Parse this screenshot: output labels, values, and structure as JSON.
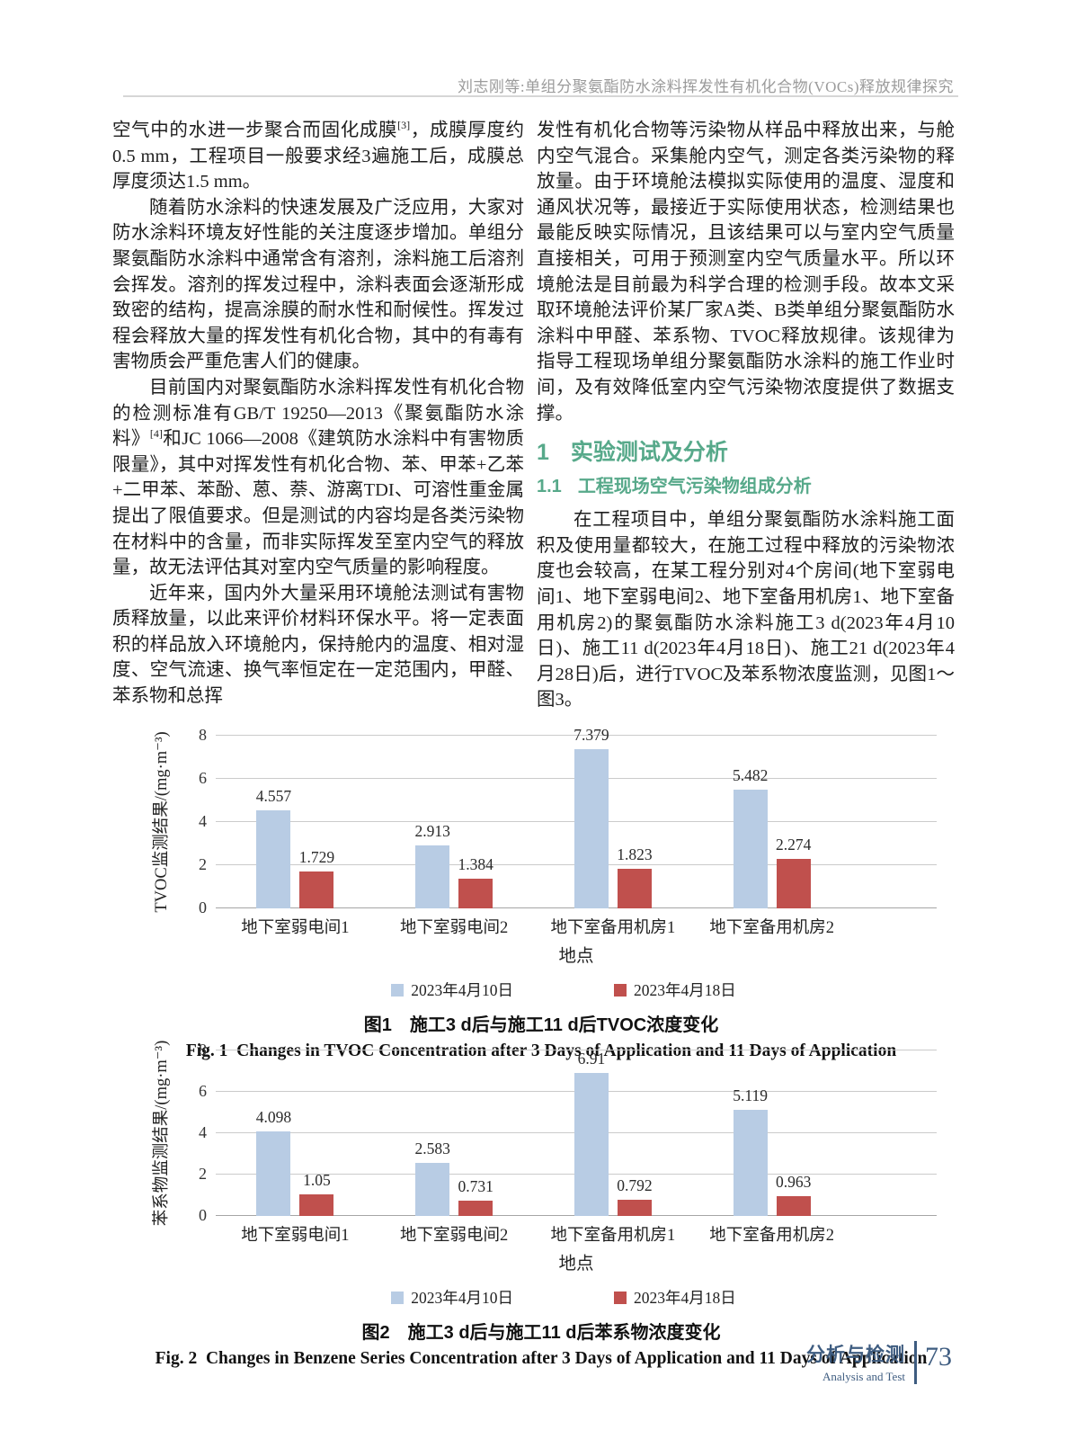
{
  "page": {
    "running_head": "刘志刚等:单组分聚氨酯防水涂料挥发性有机化合物(VOCs)释放规律探究",
    "footer": {
      "section_cn": "分析与检测",
      "section_en": "Analysis and Test",
      "page_number": "73",
      "accent_color": "#3e5c80"
    }
  },
  "colors": {
    "heading_green": "#57a98a",
    "bar_blue": "#b8cce4",
    "bar_red": "#c0504d"
  },
  "article": {
    "left_column": {
      "p1": [
        {
          "t": "空气中的水进一步聚合而固化成膜"
        },
        {
          "t": "[3]",
          "sup": true
        },
        {
          "t": "，成膜厚度约0.5 mm，工程项目一般要求经3遍施工后，成膜总厚度须达1.5 mm。"
        }
      ],
      "p2": [
        {
          "t": "随着防水涂料的快速发展及广泛应用，大家对防水涂料环境友好性能的关注度逐步增加。单组分聚氨酯防水涂料中通常含有溶剂，涂料施工后溶剂会挥发。溶剂的挥发过程中，涂料表面会逐渐形成致密的结构，提高涂膜的耐水性和耐候性。挥发过程会释放大量的挥发性有机化合物，其中的有毒有害物质会严重危害人们的健康。"
        }
      ],
      "p3": [
        {
          "t": "目前国内对聚氨酯防水涂料挥发性有机化合物的检测标准有GB/T 19250—2013《聚氨酯防水涂料》"
        },
        {
          "t": "[4]",
          "sup": true
        },
        {
          "t": "和JC 1066—2008《建筑防水涂料中有害物质限量》，其中对挥发性有机化合物、苯、甲苯+乙苯+二甲苯、苯酚、蒽、萘、游离TDI、可溶性重金属提出了限值要求。但是测试的内容均是各类污染物在材料中的含量，而非实际挥发至室内空气的释放量，故无法评估其对室内空气质量的影响程度。"
        }
      ],
      "p4": [
        {
          "t": "近年来，国内外大量采用环境舱法测试有害物质释放量，以此来评价材料环保水平。将一定表面积的样品放入环境舱内，保持舱内的温度、相对湿度、空气流速、换气率恒定在一定范围内，甲醛、苯系物和总挥"
        }
      ]
    },
    "right_column": {
      "p1": [
        {
          "t": "发性有机化合物等污染物从样品中释放出来，与舱内空气混合。采集舱内空气，测定各类污染物的释放量。由于环境舱法模拟实际使用的温度、湿度和通风状况等，最接近于实际使用状态，检测结果也最能反映实际情况，且该结果可以与室内空气质量直接相关，可用于预测室内空气质量水平。所以环境舱法是目前最为科学合理的检测手段。故本文采取环境舱法评价某厂家A类、B类单组分聚氨酯防水涂料中甲醛、苯系物、TVOC释放规律。该规律为指导工程现场单组分聚氨酯防水涂料的施工作业时间，及有效降低室内空气污染物浓度提供了数据支撑。"
        }
      ],
      "section_number": "1",
      "section_title": "实验测试及分析",
      "subsection_number": "1.1",
      "subsection_title": "工程现场空气污染物组成分析",
      "p2": [
        {
          "t": "在工程项目中，单组分聚氨酯防水涂料施工面积及使用量都较大，在施工过程中释放的污染物浓度也会较高，在某工程分别对4个房间(地下室弱电间1、地下室弱电间2、地下室备用机房1、地下室备用机房2)的聚氨酯防水涂料施工3 d(2023年4月10日)、施工11 d(2023年4月18日)、施工21 d(2023年4月28日)后，进行TVOC及苯系物浓度监测，见图1～图3。"
        }
      ]
    }
  },
  "chart_data": [
    {
      "type": "bar",
      "title_cn": "图1　施工3 d后与施工11 d后TVOC浓度变化",
      "title_en": "Fig. 1  Changes in TVOC Concentration after 3 Days of Application and 11 Days of Application",
      "categories": [
        "地下室弱电间1",
        "地下室弱电间2",
        "地下室备用机房1",
        "地下室备用机房2"
      ],
      "series": [
        {
          "name": "2023年4月10日",
          "color": "#b8cce4",
          "values": [
            4.557,
            2.913,
            7.379,
            5.482
          ]
        },
        {
          "name": "2023年4月18日",
          "color": "#c0504d",
          "values": [
            1.729,
            1.384,
            1.823,
            2.274
          ]
        }
      ],
      "xlabel": "地点",
      "ylabel": "TVOC监测结果/(mg·m⁻³)",
      "ylim": [
        0,
        8
      ],
      "yticks": [
        0,
        2,
        4,
        6,
        8
      ],
      "grid": true,
      "legend_position": "bottom"
    },
    {
      "type": "bar",
      "title_cn": "图2　施工3 d后与施工11 d后苯系物浓度变化",
      "title_en": "Fig. 2  Changes in Benzene Series Concentration after 3 Days of Application and 11 Days of Application",
      "categories": [
        "地下室弱电间1",
        "地下室弱电间2",
        "地下室备用机房1",
        "地下室备用机房2"
      ],
      "series": [
        {
          "name": "2023年4月10日",
          "color": "#b8cce4",
          "values": [
            4.098,
            2.583,
            6.91,
            5.119
          ]
        },
        {
          "name": "2023年4月18日",
          "color": "#c0504d",
          "values": [
            1.05,
            0.731,
            0.792,
            0.963
          ]
        }
      ],
      "xlabel": "地点",
      "ylabel": "苯系物监测结果/(mg·m⁻³)",
      "ylim": [
        0,
        8
      ],
      "yticks": [
        0,
        2,
        4,
        6,
        8
      ],
      "grid": true,
      "legend_position": "bottom"
    }
  ]
}
